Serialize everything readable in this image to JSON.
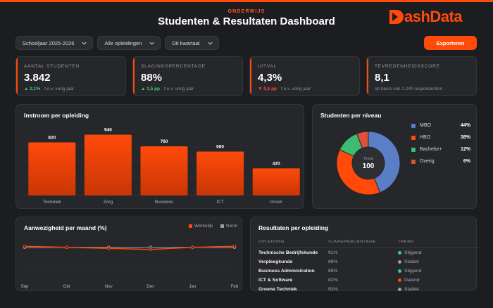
{
  "header": {
    "eyebrow": "ONDERWIJS",
    "title": "Studenten & Resultaten Dashboard",
    "logo_text": "ashData",
    "brand_color": "#ff4a0a"
  },
  "filters": {
    "year": "Schooljaar 2025-2026",
    "program": "Alle opleidingen",
    "quarter": "Dit kwartaal"
  },
  "export_label": "Exporteren",
  "kpis": [
    {
      "label": "AANTAL STUDENTEN",
      "value": "3.842",
      "delta": "▲ 2,1%",
      "delta_dir": "up",
      "note": "t.o.v. vorig jaar"
    },
    {
      "label": "SLAGINGSPERCENTAGE",
      "value": "88%",
      "delta": "▲ 1,5 pp",
      "delta_dir": "up",
      "note": "t.o.v. vorig jaar"
    },
    {
      "label": "UITVAL",
      "value": "4,3%",
      "delta": "▼ 0,6 pp",
      "delta_dir": "down",
      "note": "t.o.v. vorig jaar"
    },
    {
      "label": "TEVREDENHEIDSSCORE",
      "value": "8,1",
      "delta": "",
      "delta_dir": "",
      "note": "op basis van 1.240 respondenten"
    }
  ],
  "panels": {
    "instroom_title": "Instroom per opleiding",
    "niveau_title": "Studenten per niveau",
    "aanwezigheid_title": "Aanwezigheid per maand (%)",
    "resultaten_title": "Resultaten per opleiding"
  },
  "chart_data": [
    {
      "type": "bar",
      "categories": [
        "Techniek",
        "Zorg",
        "Business",
        "ICT",
        "Groen"
      ],
      "values": [
        820,
        940,
        760,
        680,
        420
      ],
      "ylim": [
        0,
        1000
      ],
      "bar_color": "#ff4a0a"
    },
    {
      "type": "pie",
      "center_label": "Totaal",
      "center_value": "100",
      "slices": [
        {
          "label": "MBO",
          "value": 44,
          "pct": "44%",
          "color": "#5b7fc7"
        },
        {
          "label": "HBO",
          "value": 38,
          "pct": "38%",
          "color": "#ff4a0a"
        },
        {
          "label": "Bachelor+",
          "value": 12,
          "pct": "12%",
          "color": "#3ebc72"
        },
        {
          "label": "Overig",
          "value": 6,
          "pct": "6%",
          "color": "#e0503a"
        }
      ]
    },
    {
      "type": "line",
      "categories": [
        "Sep",
        "Okt",
        "Nov",
        "Dec",
        "Jan",
        "Feb"
      ],
      "series": [
        {
          "name": "Werkelijk",
          "values": [
            92,
            91,
            90,
            89,
            91,
            92
          ],
          "color": "#ff4a0a"
        },
        {
          "name": "Norm",
          "values": [
            91,
            91,
            91,
            91,
            91,
            91
          ],
          "color": "#9c9ca0"
        }
      ],
      "ylim": [
        60,
        100
      ]
    }
  ],
  "results_table": {
    "headers": [
      "OPLEIDING",
      "SLAAGPERCENTAGE",
      "TREND"
    ],
    "rows": [
      {
        "name": "Technische Bedrijfskunde",
        "pct": "91%",
        "trend": "Stijgend",
        "trend_color": "#3ecf73"
      },
      {
        "name": "Verpleegkunde",
        "pct": "89%",
        "trend": "Stabiel",
        "trend_color": "#9c9ca0"
      },
      {
        "name": "Business Administration",
        "pct": "85%",
        "trend": "Stijgend",
        "trend_color": "#3ecf73"
      },
      {
        "name": "ICT & Software",
        "pct": "82%",
        "trend": "Dalend",
        "trend_color": "#ff4a0a"
      },
      {
        "name": "Groene Techniek",
        "pct": "93%",
        "trend": "Stabiel",
        "trend_color": "#9c9ca0"
      }
    ]
  }
}
